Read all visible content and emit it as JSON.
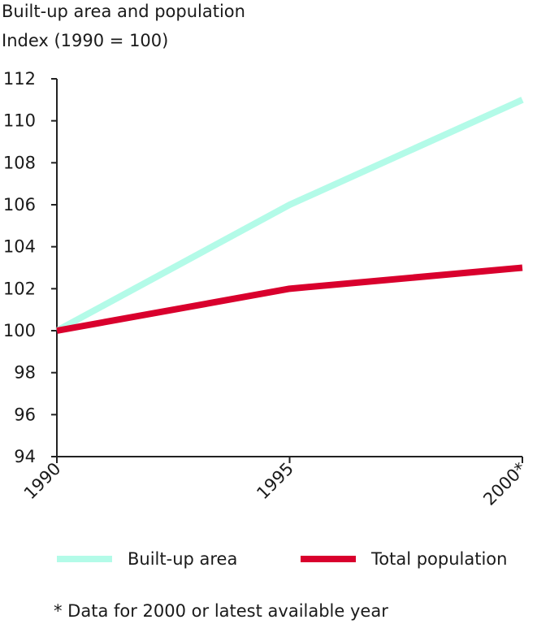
{
  "chart_data": {
    "type": "line",
    "title": "Built-up area and population",
    "subtitle": "Index (1990 = 100)",
    "xlabel": "",
    "ylabel": "",
    "categories": [
      "1990",
      "1995",
      "2000*"
    ],
    "ylim": [
      94,
      112
    ],
    "yticks": [
      "94",
      "96",
      "98",
      "100",
      "102",
      "104",
      "106",
      "108",
      "110",
      "112"
    ],
    "grid": false,
    "legend_position": "bottom",
    "series": [
      {
        "name": "Built-up area",
        "values": [
          100,
          106,
          111
        ],
        "color": "#b3fbe8"
      },
      {
        "name": "Total population",
        "values": [
          100,
          102,
          103
        ],
        "color": "#d9002d"
      }
    ],
    "footnote": "* Data for 2000 or latest available year"
  }
}
